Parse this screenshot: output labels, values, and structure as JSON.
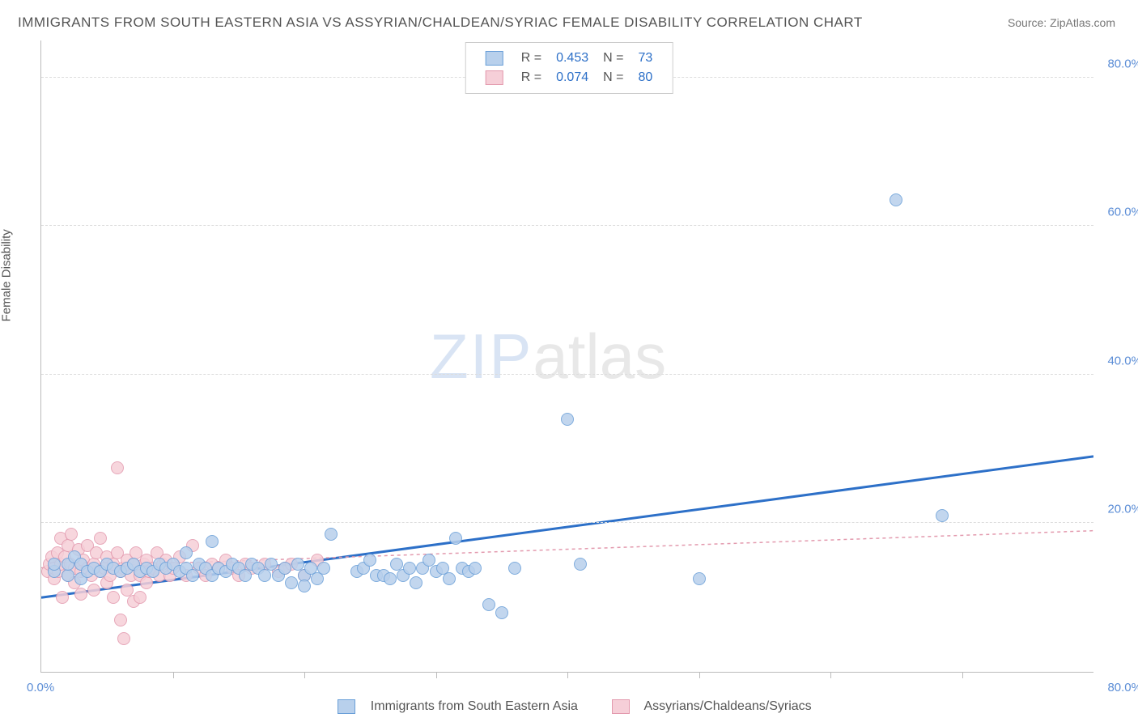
{
  "title": "IMMIGRANTS FROM SOUTH EASTERN ASIA VS ASSYRIAN/CHALDEAN/SYRIAC FEMALE DISABILITY CORRELATION CHART",
  "source": "Source: ZipAtlas.com",
  "ylabel": "Female Disability",
  "watermark_zip": "ZIP",
  "watermark_atlas": "atlas",
  "chart": {
    "type": "scatter",
    "xlim": [
      0,
      80
    ],
    "ylim": [
      0,
      85
    ],
    "yticks": [
      20,
      40,
      60,
      80
    ],
    "ytick_labels": [
      "20.0%",
      "40.0%",
      "60.0%",
      "80.0%"
    ],
    "xtick_origin": "0.0%",
    "xtick_max": "80.0%",
    "x_minor_ticks": [
      10,
      20,
      30,
      40,
      50,
      60,
      70
    ],
    "plot_bg": "#ffffff",
    "grid_color": "#dddddd",
    "axis_color": "#bbbbbb",
    "tick_label_color": "#5b8dd6",
    "point_radius": 7,
    "series": [
      {
        "key": "blue",
        "label": "Immigrants from South Eastern Asia",
        "R_label": "R =",
        "R": "0.453",
        "N_label": "N =",
        "N": "73",
        "fill": "#b8d0ec",
        "stroke": "#6a9fd8",
        "line_color": "#2d70c8",
        "line_width": 3,
        "line_dash": "none",
        "line": {
          "x1": 0,
          "y1": 10,
          "x2": 80,
          "y2": 29
        },
        "points": [
          [
            1,
            13.5
          ],
          [
            1,
            14.5
          ],
          [
            2,
            13
          ],
          [
            2,
            14.5
          ],
          [
            2.5,
            15.5
          ],
          [
            3,
            12.5
          ],
          [
            3,
            14.5
          ],
          [
            3.5,
            13.5
          ],
          [
            4,
            14
          ],
          [
            4.5,
            13.5
          ],
          [
            5,
            14.5
          ],
          [
            5.5,
            14
          ],
          [
            6,
            13.5
          ],
          [
            6.5,
            14
          ],
          [
            7,
            14.5
          ],
          [
            7.5,
            13.5
          ],
          [
            8,
            14
          ],
          [
            8.5,
            13.5
          ],
          [
            9,
            14.5
          ],
          [
            9.5,
            14
          ],
          [
            10,
            14.5
          ],
          [
            10.5,
            13.5
          ],
          [
            11,
            14
          ],
          [
            11,
            16
          ],
          [
            11.5,
            13
          ],
          [
            12,
            14.5
          ],
          [
            12.5,
            14
          ],
          [
            13,
            13
          ],
          [
            13,
            17.5
          ],
          [
            13.5,
            14
          ],
          [
            14,
            13.5
          ],
          [
            14.5,
            14.5
          ],
          [
            15,
            14
          ],
          [
            15.5,
            13
          ],
          [
            16,
            14.5
          ],
          [
            16.5,
            14
          ],
          [
            17,
            13
          ],
          [
            17.5,
            14.5
          ],
          [
            18,
            13
          ],
          [
            18.5,
            14
          ],
          [
            19,
            12
          ],
          [
            19.5,
            14.5
          ],
          [
            20,
            13
          ],
          [
            20,
            11.5
          ],
          [
            20.5,
            14
          ],
          [
            21,
            12.5
          ],
          [
            21.5,
            14
          ],
          [
            22,
            18.5
          ],
          [
            24,
            13.5
          ],
          [
            24.5,
            14
          ],
          [
            25,
            15
          ],
          [
            25.5,
            13
          ],
          [
            26,
            13
          ],
          [
            26.5,
            12.5
          ],
          [
            27,
            14.5
          ],
          [
            27.5,
            13
          ],
          [
            28,
            14
          ],
          [
            28.5,
            12
          ],
          [
            29,
            14
          ],
          [
            29.5,
            15
          ],
          [
            30,
            13.5
          ],
          [
            30.5,
            14
          ],
          [
            31,
            12.5
          ],
          [
            31.5,
            18
          ],
          [
            32,
            14
          ],
          [
            32.5,
            13.5
          ],
          [
            33,
            14
          ],
          [
            34,
            9
          ],
          [
            35,
            8
          ],
          [
            36,
            14
          ],
          [
            40,
            34
          ],
          [
            41,
            14.5
          ],
          [
            50,
            12.5
          ],
          [
            65,
            63.5
          ],
          [
            68.5,
            21
          ]
        ]
      },
      {
        "key": "pink",
        "label": "Assyrians/Chaldeans/Syriacs",
        "R_label": "R =",
        "R": "0.074",
        "N_label": "N =",
        "N": "80",
        "fill": "#f6cfd8",
        "stroke": "#e39aae",
        "line_color": "#e39aae",
        "line_width": 1.5,
        "line_dash": "4,4",
        "line": {
          "x1": 0,
          "y1": 14,
          "x2": 80,
          "y2": 19
        },
        "points": [
          [
            0.5,
            13.5
          ],
          [
            0.6,
            14.5
          ],
          [
            0.8,
            15.5
          ],
          [
            1,
            12.5
          ],
          [
            1,
            14
          ],
          [
            1.2,
            16
          ],
          [
            1.3,
            13.5
          ],
          [
            1.5,
            14.5
          ],
          [
            1.5,
            18
          ],
          [
            1.6,
            10
          ],
          [
            1.8,
            15.5
          ],
          [
            2,
            13
          ],
          [
            2,
            17
          ],
          [
            2.2,
            14.5
          ],
          [
            2.3,
            18.5
          ],
          [
            2.5,
            12
          ],
          [
            2.5,
            14
          ],
          [
            2.8,
            16.5
          ],
          [
            3,
            13.5
          ],
          [
            3,
            10.5
          ],
          [
            3.2,
            15
          ],
          [
            3.5,
            14
          ],
          [
            3.5,
            17
          ],
          [
            3.8,
            13
          ],
          [
            4,
            14.5
          ],
          [
            4,
            11
          ],
          [
            4.2,
            16
          ],
          [
            4.5,
            13.5
          ],
          [
            4.5,
            18
          ],
          [
            4.8,
            14
          ],
          [
            5,
            12
          ],
          [
            5,
            15.5
          ],
          [
            5.2,
            13
          ],
          [
            5.5,
            14.5
          ],
          [
            5.5,
            10
          ],
          [
            5.8,
            16
          ],
          [
            5.8,
            27.5
          ],
          [
            6,
            13.5
          ],
          [
            6,
            7
          ],
          [
            6.2,
            14
          ],
          [
            6.3,
            4.5
          ],
          [
            6.5,
            15
          ],
          [
            6.5,
            11
          ],
          [
            6.8,
            13
          ],
          [
            7,
            14.5
          ],
          [
            7,
            9.5
          ],
          [
            7.2,
            16
          ],
          [
            7.5,
            13
          ],
          [
            7.5,
            10
          ],
          [
            7.8,
            14.5
          ],
          [
            8,
            12
          ],
          [
            8,
            15
          ],
          [
            8.2,
            13.5
          ],
          [
            8.5,
            14
          ],
          [
            8.8,
            16
          ],
          [
            9,
            13
          ],
          [
            9.2,
            14.5
          ],
          [
            9.5,
            15
          ],
          [
            9.8,
            13
          ],
          [
            10,
            14
          ],
          [
            10.5,
            15.5
          ],
          [
            11,
            13
          ],
          [
            11.5,
            17
          ],
          [
            12,
            14
          ],
          [
            12.5,
            13
          ],
          [
            13,
            14.5
          ],
          [
            13.5,
            14
          ],
          [
            14,
            15
          ],
          [
            14.5,
            14
          ],
          [
            15,
            13
          ],
          [
            15.5,
            14.5
          ],
          [
            16,
            14
          ],
          [
            17,
            14.5
          ],
          [
            18,
            13.5
          ],
          [
            18.5,
            14
          ],
          [
            19,
            14.5
          ],
          [
            20,
            13
          ],
          [
            21,
            15
          ]
        ]
      }
    ]
  },
  "legend_bottom": [
    {
      "label": "Immigrants from South Eastern Asia",
      "fill": "#b8d0ec",
      "stroke": "#6a9fd8"
    },
    {
      "label": "Assyrians/Chaldeans/Syriacs",
      "fill": "#f6cfd8",
      "stroke": "#e39aae"
    }
  ]
}
